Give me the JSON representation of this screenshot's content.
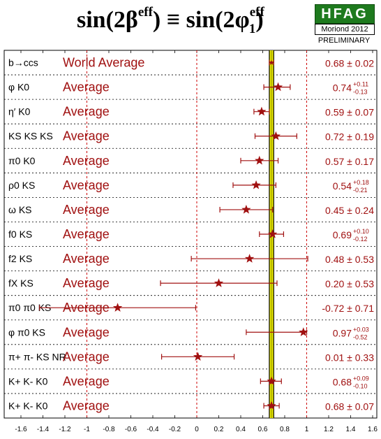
{
  "header": {
    "title_main": "sin(2β",
    "title_sup1": "eff",
    "title_mid": ") ≡ sin(2φ",
    "title_sup2": "eff",
    "title_sub2": "1",
    "title_end": ")",
    "logo": "HFAG",
    "conference": "Moriond 2012",
    "status": "PRELIMINARY"
  },
  "chart_data": {
    "type": "forest",
    "title": "sin(2β^eff) ≡ sin(2φ1^eff)",
    "xlim": [
      -1.6,
      1.6
    ],
    "xticks": [
      "-1.6",
      "-1.4",
      "-1.2",
      "-1",
      "-0.8",
      "-0.6",
      "-0.4",
      "-0.2",
      "0",
      "0.2",
      "0.4",
      "0.6",
      "0.8",
      "1",
      "1.2",
      "1.4",
      "1.6"
    ],
    "reference_band": {
      "center": 0.68,
      "error": 0.02,
      "color": "#e8e800"
    },
    "reference_lines": [
      -1,
      0,
      1
    ],
    "rows": [
      {
        "label": "b→ccs",
        "avg_label": "World Average",
        "value": 0.68,
        "err_plus": 0.02,
        "err_minus": 0.02,
        "text": "0.68 ± 0.02"
      },
      {
        "label": "φ K0",
        "avg_label": "Average",
        "value": 0.74,
        "err_plus": 0.11,
        "err_minus": 0.13,
        "text": "0.74",
        "text_plus": "+0.11",
        "text_minus": "-0.13"
      },
      {
        "label": "η′ K0",
        "avg_label": "Average",
        "value": 0.59,
        "err_plus": 0.07,
        "err_minus": 0.07,
        "text": "0.59 ± 0.07"
      },
      {
        "label": "KS KS KS",
        "avg_label": "Average",
        "value": 0.72,
        "err_plus": 0.19,
        "err_minus": 0.19,
        "text": "0.72 ± 0.19"
      },
      {
        "label": "π0 K0",
        "avg_label": "Average",
        "value": 0.57,
        "err_plus": 0.17,
        "err_minus": 0.17,
        "text": "0.57 ± 0.17"
      },
      {
        "label": "ρ0 KS",
        "avg_label": "Average",
        "value": 0.54,
        "err_plus": 0.18,
        "err_minus": 0.21,
        "text": "0.54",
        "text_plus": "+0.18",
        "text_minus": "-0.21"
      },
      {
        "label": "ω KS",
        "avg_label": "Average",
        "value": 0.45,
        "err_plus": 0.24,
        "err_minus": 0.24,
        "text": "0.45 ± 0.24"
      },
      {
        "label": "f0 KS",
        "avg_label": "Average",
        "value": 0.69,
        "err_plus": 0.1,
        "err_minus": 0.12,
        "text": "0.69",
        "text_plus": "+0.10",
        "text_minus": "-0.12"
      },
      {
        "label": "f2 KS",
        "avg_label": "Average",
        "value": 0.48,
        "err_plus": 0.53,
        "err_minus": 0.53,
        "text": "0.48 ± 0.53"
      },
      {
        "label": "fX KS",
        "avg_label": "Average",
        "value": 0.2,
        "err_plus": 0.53,
        "err_minus": 0.53,
        "text": "0.20 ± 0.53"
      },
      {
        "label": "π0 π0 KS",
        "avg_label": "Average",
        "value": -0.72,
        "err_plus": 0.71,
        "err_minus": 0.71,
        "text": "-0.72 ± 0.71"
      },
      {
        "label": "φ π0 KS",
        "avg_label": "Average",
        "value": 0.97,
        "err_plus": 0.03,
        "err_minus": 0.52,
        "text": "0.97",
        "text_plus": "+0.03",
        "text_minus": "-0.52"
      },
      {
        "label": "π+ π- KS NR",
        "avg_label": "Average",
        "value": 0.01,
        "err_plus": 0.33,
        "err_minus": 0.33,
        "text": "0.01 ± 0.33"
      },
      {
        "label": "K+ K- K0",
        "avg_label": "Average",
        "value": 0.68,
        "err_plus": 0.09,
        "err_minus": 0.1,
        "text": "0.68",
        "text_plus": "+0.09",
        "text_minus": "-0.10"
      },
      {
        "label": "K+ K- K0",
        "avg_label": "Average",
        "value": 0.68,
        "err_plus": 0.07,
        "err_minus": 0.07,
        "text": "0.68 ± 0.07"
      }
    ],
    "colors": {
      "marker": "#a01010",
      "band": "#e8e800",
      "band_edge": "#000000",
      "reflines": "#cc0000"
    }
  }
}
